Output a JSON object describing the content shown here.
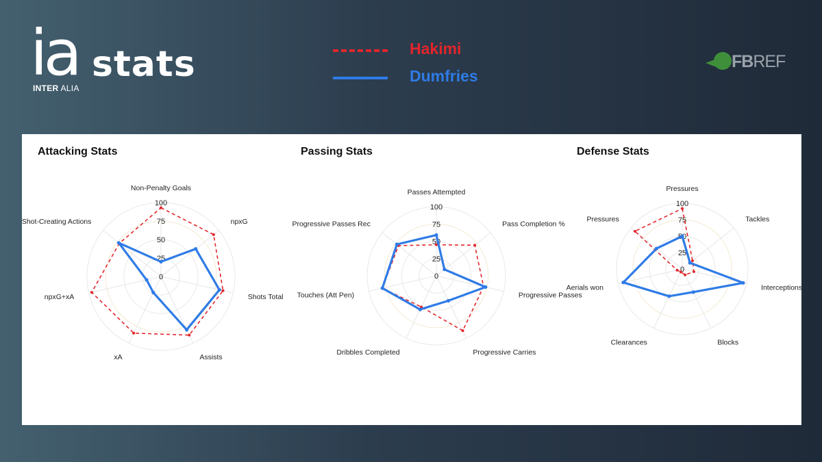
{
  "header": {
    "logo_mark": "ia",
    "logo_word": "stats",
    "logo_sub_bold": "INTER",
    "logo_sub": "ALIA",
    "source_logo_a": "FB",
    "source_logo_b": "REF"
  },
  "legend": {
    "items": [
      {
        "label": "Hakimi",
        "color": "#e2252b",
        "style": "dashed"
      },
      {
        "label": "Dumfries",
        "color": "#2f7be6",
        "style": "solid"
      }
    ]
  },
  "chart_data": [
    {
      "type": "radar",
      "title": "Attacking Stats",
      "axes": [
        "Non-Penalty Goals",
        "npxG",
        "Shots Total",
        "Assists",
        "xA",
        "npxG+xA",
        "Shot-Creating Actions"
      ],
      "ticks": [
        0,
        25,
        50,
        75,
        100
      ],
      "range": [
        0,
        100
      ],
      "series": [
        {
          "name": "Hakimi",
          "color": "#e2252b",
          "style": "dashed",
          "values": [
            93,
            91,
            86,
            88,
            85,
            96,
            72
          ]
        },
        {
          "name": "Dumfries",
          "color": "#2f7be6",
          "style": "solid",
          "values": [
            20,
            60,
            81,
            80,
            24,
            20,
            73
          ]
        }
      ]
    },
    {
      "type": "radar",
      "title": "Passing Stats",
      "axes": [
        "Passes Attempted",
        "Pass Completion %",
        "Progressive Passes",
        "Progressive Carries",
        "Dribbles Completed",
        "Touches (Att Pen)",
        "Progressive Passes Rec"
      ],
      "ticks": [
        0,
        25,
        50,
        75,
        100
      ],
      "range": [
        0,
        100
      ],
      "series": [
        {
          "name": "Hakimi",
          "color": "#e2252b",
          "style": "dashed",
          "values": [
            45,
            71,
            70,
            88,
            50,
            80,
            70
          ]
        },
        {
          "name": "Dumfries",
          "color": "#2f7be6",
          "style": "solid",
          "values": [
            59,
            15,
            73,
            40,
            54,
            80,
            73
          ]
        }
      ]
    },
    {
      "type": "radar",
      "title": "Defense Stats",
      "axes": [
        "Pressures",
        "Tackles",
        "Interceptions",
        "Blocks",
        "Clearances",
        "Aerials won",
        "Pressures"
      ],
      "ticks": [
        0,
        25,
        50,
        75,
        100
      ],
      "range": [
        0,
        100
      ],
      "series": [
        {
          "name": "Hakimi",
          "color": "#e2252b",
          "style": "dashed",
          "values": [
            92,
            20,
            18,
            10,
            5,
            8,
            92
          ]
        },
        {
          "name": "Dumfries",
          "color": "#2f7be6",
          "style": "solid",
          "values": [
            50,
            15,
            95,
            39,
            46,
            92,
            50
          ]
        }
      ]
    }
  ]
}
